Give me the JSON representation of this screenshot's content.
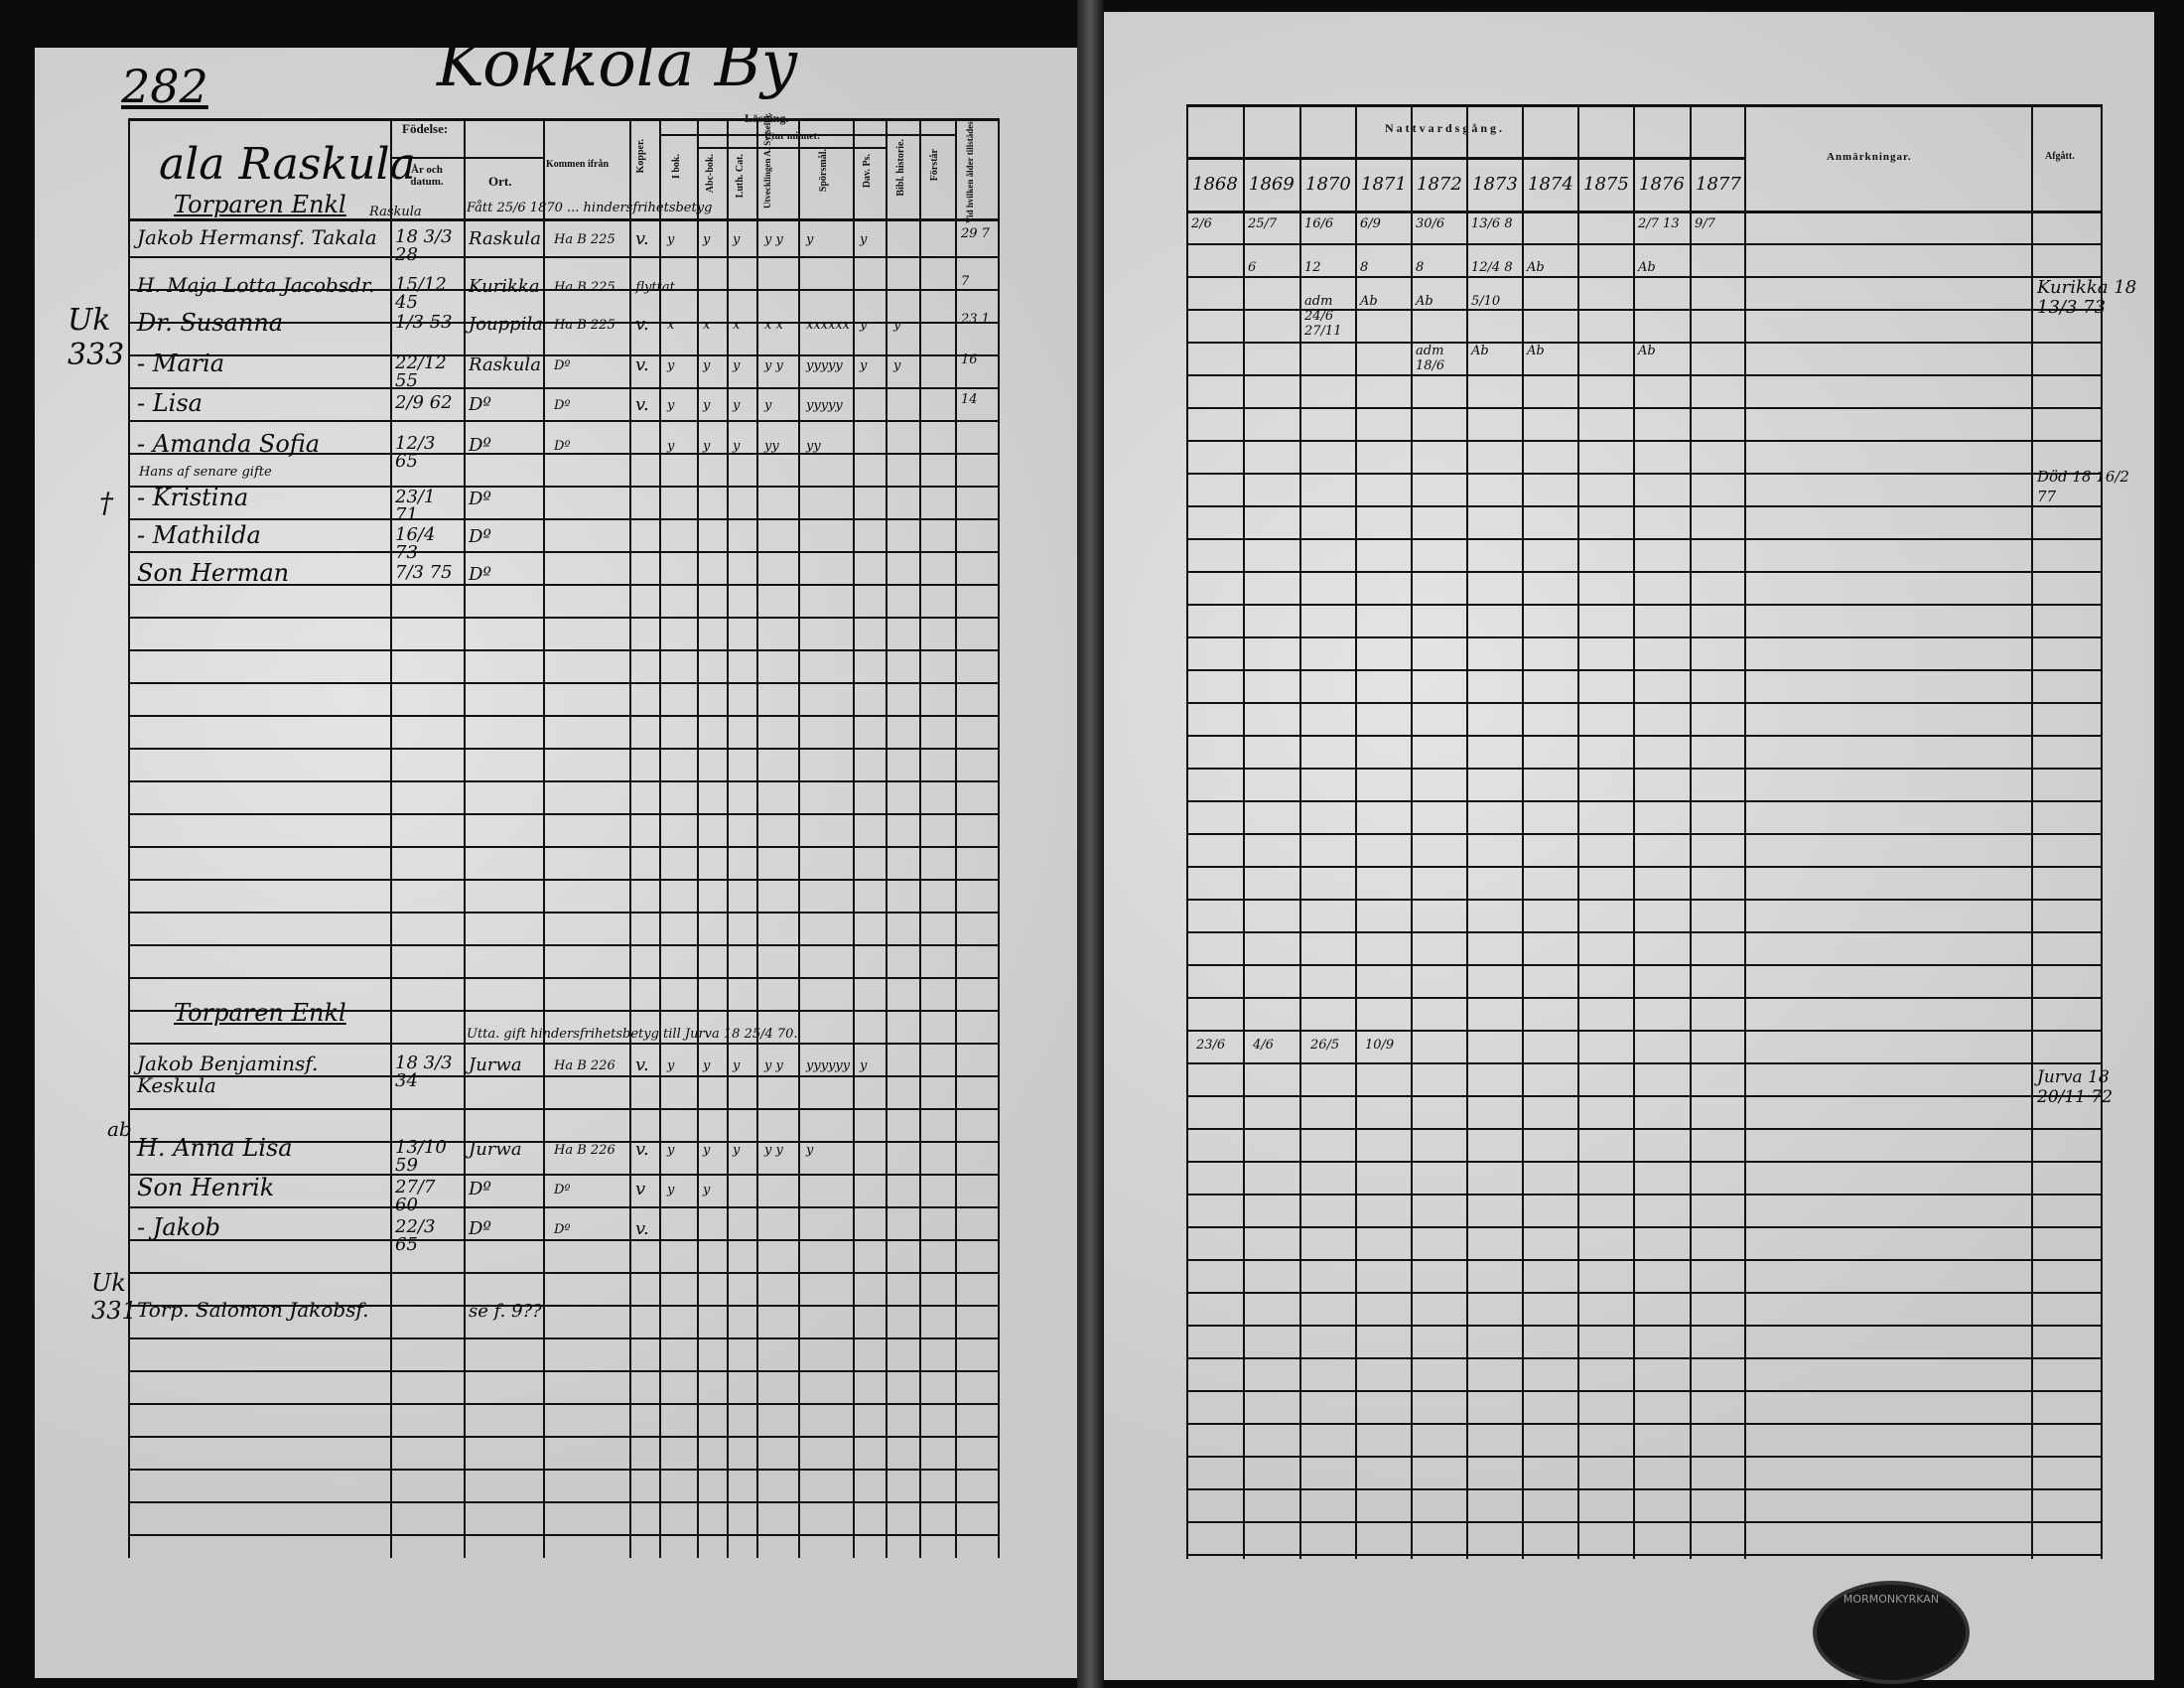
{
  "left_page": {
    "page_number": "282",
    "village_title": "Kokkola By",
    "farm_name": "ala Raskula",
    "headers": {
      "birth": "Födelse:",
      "year_date": "År och datum.",
      "place": "Ort.",
      "arrived_from": "Kommen ifrån",
      "smallpox": "Kopper.",
      "reading": "Läsning.",
      "from_memory": "Utur minnet:",
      "in_book": "I bok.",
      "abc": "Abc-bok.",
      "catechism": "Luth. Cat.",
      "explanation": "Utvecklingen A. Sysselbr.",
      "hymns": "Spörsmål.",
      "psalms": "Dav. Ps.",
      "bible_history": "Bibl. historie.",
      "understanding": "Förstår",
      "communion_age": "Vid hvilken ålder tillstädes"
    },
    "households": [
      {
        "heading": "Torparen Enkl",
        "persons": [
          {
            "name": "Jakob Hermansf. Takala",
            "note": "Raskula",
            "birth": "18 3/3 28",
            "place": "Raskula",
            "from": "Ha B 225",
            "kopper": "v.",
            "marks": [
              "y",
              "y",
              "y",
              "y y",
              "y",
              "y"
            ],
            "annotation": "Fått 25/6 1870 ... hindersfrihetsbetyg",
            "age": "29 7"
          },
          {
            "name": "H. Maja Lotta Jacobsdr.",
            "birth": "15/12 45",
            "place": "Kurikka",
            "from": "Ha B 225 ... flyttat",
            "age": "7"
          },
          {
            "name": "Dr. Susanna",
            "birth": "1/3 53",
            "place": "Jouppila",
            "from": "Ha B 225",
            "kopper": "v.",
            "marks": [
              "x",
              "x",
              "x",
              "x x",
              "xxxxxx",
              "y",
              "y"
            ],
            "age": "23 1"
          },
          {
            "name": "- Maria",
            "birth": "22/12 55",
            "place": "Raskula",
            "from": "Dº",
            "kopper": "v.",
            "marks": [
              "y",
              "y",
              "y",
              "y y",
              "yyyyy",
              "y",
              "y"
            ],
            "age": "16"
          },
          {
            "name": "- Lisa",
            "birth": "2/9 62",
            "place": "Dº",
            "from": "Dº",
            "kopper": "v.",
            "marks": [
              "y",
              "y",
              "y",
              "y",
              "yyyyy"
            ],
            "age": "14"
          },
          {
            "name": "- Amanda Sofia",
            "birth": "12/3 65",
            "place": "Dº",
            "from": "Dº",
            "marks": [
              "y",
              "y",
              "y",
              "yy",
              "yy"
            ]
          },
          {
            "name": "- Kristina",
            "note": "Hans af senare gifte",
            "birth": "23/1 71",
            "place": "Dº"
          },
          {
            "name": "- Mathilda",
            "birth": "16/4 73",
            "place": "Dº"
          },
          {
            "name": "Son Herman",
            "birth": "7/3 75",
            "place": "Dº"
          }
        ]
      },
      {
        "heading": "Torparen Enkl",
        "persons": [
          {
            "name": "Jakob Benjaminsf. Keskula",
            "birth": "18 3/3 34",
            "place": "Jurwa",
            "from": "Ha B 226",
            "kopper": "v.",
            "marks": [
              "y",
              "y",
              "y",
              "y y",
              "yyyyyy",
              "y"
            ],
            "annotation": "Utta. gift hindersfrihetsbetyg till Jurva 18 25/4 70."
          },
          {
            "name": "H. Anna Lisa",
            "birth": "13/10 59",
            "place": "Jurwa",
            "from": "Ha B 226",
            "kopper": "v.",
            "marks": [
              "y",
              "y",
              "y",
              "y y",
              "y"
            ]
          },
          {
            "name": "Son Henrik",
            "birth": "27/7 60",
            "place": "Dº",
            "from": "Dº",
            "kopper": "v",
            "marks": [
              "y",
              "y"
            ]
          },
          {
            "name": "- Jakob",
            "birth": "22/3 65",
            "place": "Dº",
            "from": "Dº",
            "kopper": "v."
          }
        ]
      },
      {
        "heading": "",
        "persons": [
          {
            "name": "Torp. Salomon Jakobsf.",
            "place": "se f. 9??"
          }
        ]
      }
    ],
    "margin_notes": [
      "Uk 333",
      "ab",
      "Uk 331",
      "†"
    ]
  },
  "right_page": {
    "communion_header": "Nattvardsgång.",
    "years": [
      "1868",
      "1869",
      "1870",
      "1871",
      "1872",
      "1873",
      "1874",
      "1875",
      "1876",
      "1877"
    ],
    "remarks_header": "Anmärkningar.",
    "departed_header": "Afgått.",
    "communion_rows": [
      [
        "2/6",
        "25/7",
        "16/6",
        "6/9",
        "30/6",
        "13/6 8",
        "",
        "",
        "2/7 13",
        "9/7"
      ],
      [
        "",
        "6",
        "12",
        "8",
        "8",
        "12/4 8",
        "Ab",
        "",
        "Ab",
        ""
      ],
      [
        "",
        "",
        "adm 24/6 27/11",
        "Ab",
        "Ab",
        "5/10",
        "",
        "",
        "",
        ""
      ],
      [
        "",
        "",
        "",
        "",
        "adm 18/6",
        "Ab",
        "Ab",
        "",
        "Ab",
        ""
      ]
    ],
    "communion_rows_2": [
      [
        "23/6",
        "4/6",
        "26/5",
        "10/9"
      ]
    ],
    "departures": [
      "Kurikka 18 13/3 73",
      "Död 18 16/2 77",
      "Jurva 18 20/11 72"
    ],
    "stamp_text": "MORMONKYRKAN"
  }
}
